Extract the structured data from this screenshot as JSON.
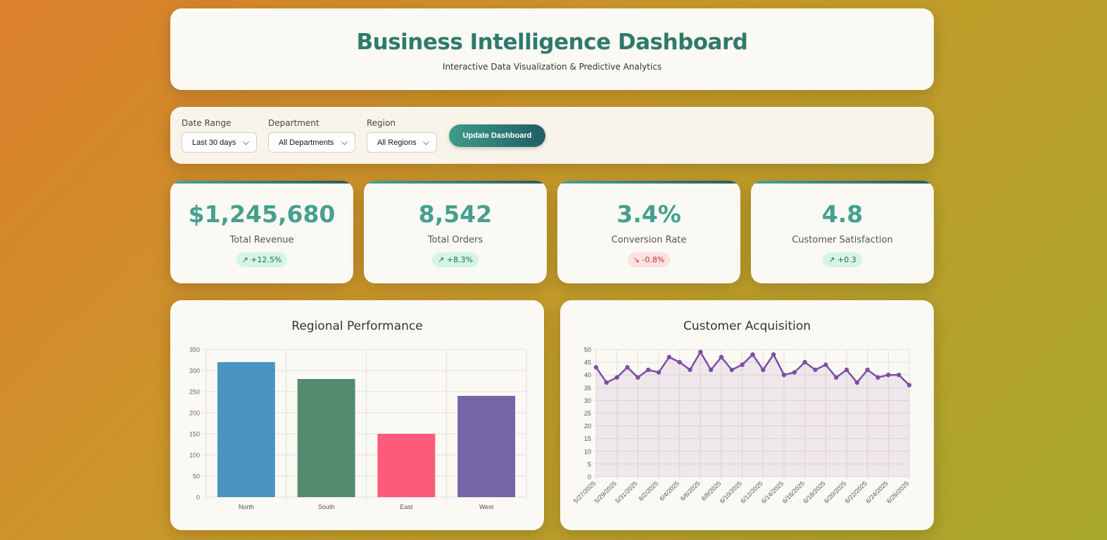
{
  "header": {
    "title": "Business Intelligence Dashboard",
    "subtitle": "Interactive Data Visualization & Predictive Analytics"
  },
  "filters": {
    "date_range": {
      "label": "Date Range",
      "value": "Last 30 days"
    },
    "department": {
      "label": "Department",
      "value": "All Departments"
    },
    "region": {
      "label": "Region",
      "value": "All Regions"
    },
    "update_label": "Update Dashboard"
  },
  "kpis": [
    {
      "value": "$1,245,680",
      "label": "Total Revenue",
      "change": "↗ +12.5%",
      "trend": "up"
    },
    {
      "value": "8,542",
      "label": "Total Orders",
      "change": "↗ +8.3%",
      "trend": "up"
    },
    {
      "value": "3.4%",
      "label": "Conversion Rate",
      "change": "↘ -0.8%",
      "trend": "down"
    },
    {
      "value": "4.8",
      "label": "Customer Satisfaction",
      "change": "↗ +0.3",
      "trend": "up"
    }
  ],
  "colors": {
    "accent": "#45a08e",
    "bar_colors": [
      "#4a94c2",
      "#558a6e",
      "#fc5b7a",
      "#7564a8"
    ],
    "line_color": "#7d4fa3"
  },
  "chart_data": [
    {
      "type": "bar",
      "title": "Regional Performance",
      "categories": [
        "North",
        "South",
        "East",
        "West"
      ],
      "values": [
        320,
        280,
        150,
        240
      ],
      "ylim": [
        0,
        350
      ],
      "yticks": [
        0,
        50,
        100,
        150,
        200,
        250,
        300,
        350
      ],
      "grid": true
    },
    {
      "type": "line",
      "title": "Customer Acquisition",
      "x": [
        "5/27/2025",
        "5/28/2025",
        "5/29/2025",
        "5/30/2025",
        "5/31/2025",
        "6/1/2025",
        "6/2/2025",
        "6/3/2025",
        "6/4/2025",
        "6/5/2025",
        "6/6/2025",
        "6/7/2025",
        "6/8/2025",
        "6/9/2025",
        "6/10/2025",
        "6/11/2025",
        "6/12/2025",
        "6/13/2025",
        "6/14/2025",
        "6/15/2025",
        "6/16/2025",
        "6/17/2025",
        "6/18/2025",
        "6/19/2025",
        "6/20/2025",
        "6/21/2025",
        "6/22/2025",
        "6/23/2025",
        "6/24/2025",
        "6/25/2025",
        "6/26/2025"
      ],
      "xtick_labels": [
        "5/27/2025",
        "5/29/2025",
        "5/31/2025",
        "6/2/2025",
        "6/4/2025",
        "6/6/2025",
        "6/8/2025",
        "6/10/2025",
        "6/12/2025",
        "6/14/2025",
        "6/16/2025",
        "6/18/2025",
        "6/20/2025",
        "6/22/2025",
        "6/24/2025",
        "6/26/2025"
      ],
      "values": [
        43,
        37,
        39,
        43,
        39,
        42,
        41,
        47,
        45,
        42,
        49,
        42,
        47,
        42,
        44,
        48,
        42,
        48,
        40,
        41,
        45,
        42,
        44,
        39,
        42,
        37,
        42,
        39,
        40,
        40,
        36
      ],
      "ylim": [
        0,
        50
      ],
      "yticks": [
        0,
        5,
        10,
        15,
        20,
        25,
        30,
        35,
        40,
        45,
        50
      ],
      "grid": true,
      "area_fill": true
    }
  ]
}
